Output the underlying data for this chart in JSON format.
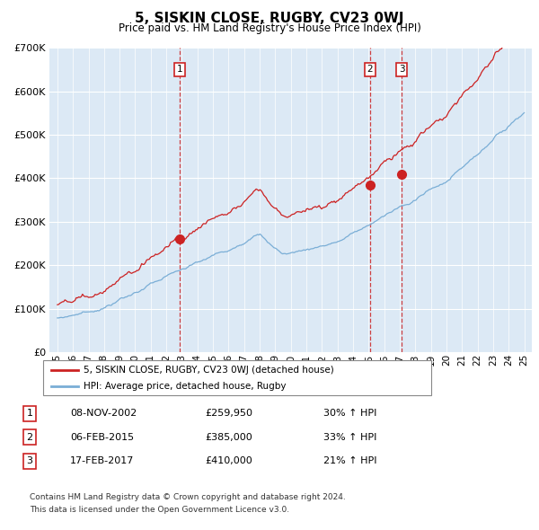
{
  "title": "5, SISKIN CLOSE, RUGBY, CV23 0WJ",
  "subtitle": "Price paid vs. HM Land Registry's House Price Index (HPI)",
  "red_label": "5, SISKIN CLOSE, RUGBY, CV23 0WJ (detached house)",
  "blue_label": "HPI: Average price, detached house, Rugby",
  "transactions": [
    {
      "num": 1,
      "date": "08-NOV-2002",
      "date_val": 2002.86,
      "price": 259950,
      "pct": "30% ↑ HPI"
    },
    {
      "num": 2,
      "date": "06-FEB-2015",
      "date_val": 2015.1,
      "price": 385000,
      "pct": "33% ↑ HPI"
    },
    {
      "num": 3,
      "date": "17-FEB-2017",
      "date_val": 2017.13,
      "price": 410000,
      "pct": "21% ↑ HPI"
    }
  ],
  "footnote1": "Contains HM Land Registry data © Crown copyright and database right 2024.",
  "footnote2": "This data is licensed under the Open Government Licence v3.0.",
  "ylim": [
    0,
    700000
  ],
  "yticks": [
    0,
    100000,
    200000,
    300000,
    400000,
    500000,
    600000,
    700000
  ],
  "xlim_start": 1994.5,
  "xlim_end": 2025.5,
  "chart_bg": "#dce9f5",
  "red_color": "#cc2222",
  "blue_color": "#7aaed6"
}
